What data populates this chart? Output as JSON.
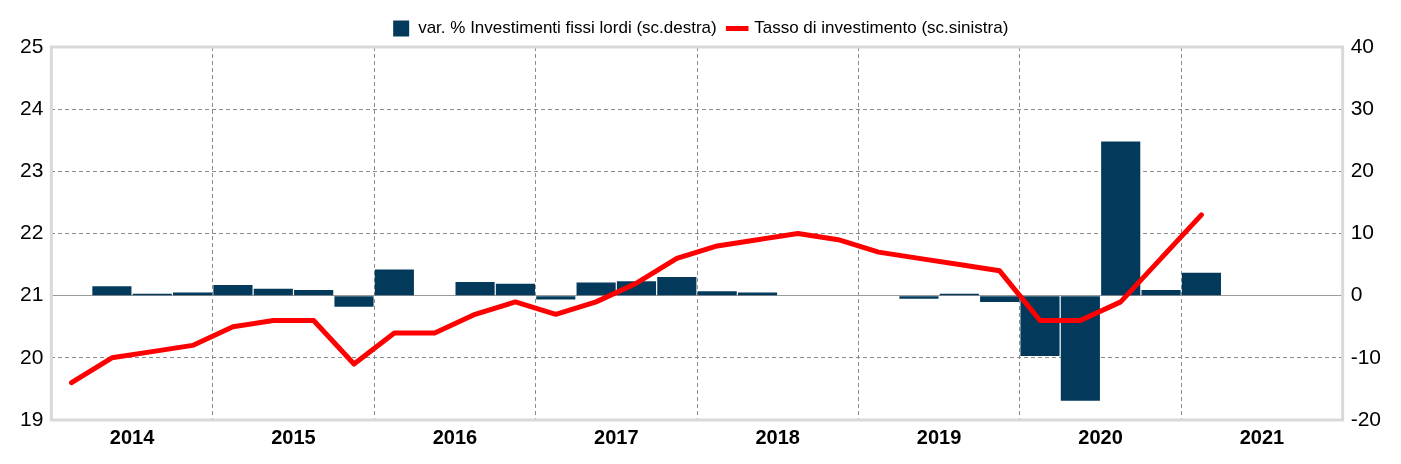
{
  "chart_data": {
    "type": "bar",
    "x": [
      2014.125,
      2014.375,
      2014.625,
      2014.875,
      2015.125,
      2015.375,
      2015.625,
      2015.875,
      2016.125,
      2016.375,
      2016.625,
      2016.875,
      2017.125,
      2017.375,
      2017.625,
      2017.875,
      2018.125,
      2018.375,
      2018.625,
      2018.875,
      2019.125,
      2019.375,
      2019.625,
      2019.875,
      2020.125,
      2020.375,
      2020.625,
      2020.875,
      2021.125
    ],
    "series": [
      {
        "name": "var. % Investimenti fissi lordi (sc.destra)",
        "axis": "y2",
        "color": "#033a5c",
        "values": [
          null,
          1.5,
          0.3,
          0.5,
          1.7,
          1.1,
          0.9,
          -1.8,
          4.2,
          0,
          2.2,
          1.9,
          -0.6,
          2.1,
          2.3,
          3.0,
          0.7,
          0.5,
          0,
          null,
          0,
          -0.5,
          0.3,
          -1.0,
          -9.7,
          -16.9,
          24.8,
          0.9,
          3.7
        ]
      },
      {
        "name": "Tasso di investimento (sc.sinistra)",
        "type": "line",
        "color": "#ff0000",
        "values": [
          19.6,
          20.0,
          20.1,
          20.2,
          20.5,
          20.6,
          20.6,
          19.9,
          20.4,
          20.4,
          20.7,
          20.9,
          20.7,
          20.9,
          21.2,
          21.6,
          21.8,
          21.9,
          22.0,
          21.9,
          21.7,
          21.6,
          21.5,
          21.4,
          20.6,
          20.6,
          20.9,
          21.6,
          22.3
        ]
      }
    ],
    "xlim": [
      2014,
      2022
    ],
    "xticks": [
      {
        "value": 2014.5,
        "label": "2014"
      },
      {
        "value": 2015,
        "label": null
      },
      {
        "value": 2015.5,
        "label": "2015"
      },
      {
        "value": 2016,
        "label": null
      },
      {
        "value": 2016.5,
        "label": "2016"
      },
      {
        "value": 2017,
        "label": null
      },
      {
        "value": 2017.5,
        "label": "2017"
      },
      {
        "value": 2018,
        "label": null
      },
      {
        "value": 2018.5,
        "label": "2018"
      },
      {
        "value": 2019,
        "label": null
      },
      {
        "value": 2019.5,
        "label": "2019"
      },
      {
        "value": 2020,
        "label": null
      },
      {
        "value": 2020.5,
        "label": "2020"
      },
      {
        "value": 2021,
        "label": null
      },
      {
        "value": 2021.5,
        "label": "2021"
      }
    ],
    "ylim": [
      19,
      25
    ],
    "yticks": [
      19,
      20,
      21,
      22,
      23,
      24,
      25
    ],
    "y2lim": [
      -20,
      40
    ],
    "y2ticks": [
      -20,
      -10,
      0,
      10,
      20,
      30,
      40
    ],
    "grid": true,
    "legend": "top",
    "marker": "none"
  }
}
